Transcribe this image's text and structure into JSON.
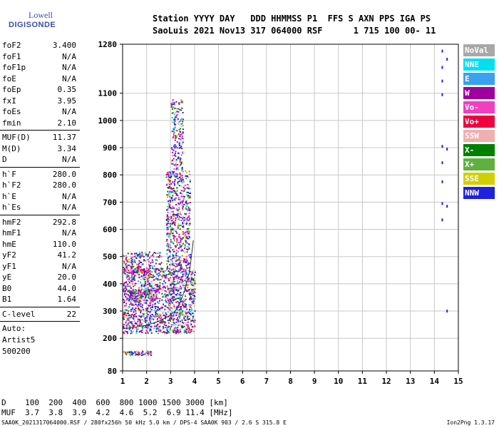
{
  "logo": {
    "top": "Lowell",
    "main": "DIGISONDE"
  },
  "header": {
    "line1": "Station YYYY DAY   DDD HHMMSS P1  FFS S AXN PPS IGA PS",
    "line2": "SaoLuis 2021 Nov13 317 064000 RSF      1 715 100 00- 11"
  },
  "params": [
    {
      "name": "foF2",
      "value": "3.400"
    },
    {
      "name": "foF1",
      "value": "N/A"
    },
    {
      "name": "foF1p",
      "value": "N/A"
    },
    {
      "name": "foE",
      "value": "N/A"
    },
    {
      "name": "foEp",
      "value": "0.35"
    },
    {
      "name": "fxI",
      "value": "3.95"
    },
    {
      "name": "foEs",
      "value": "N/A"
    },
    {
      "name": "fmin",
      "value": "2.10",
      "sep_after": true
    },
    {
      "name": "MUF(D)",
      "value": "11.37"
    },
    {
      "name": "M(D)",
      "value": "3.34"
    },
    {
      "name": "D",
      "value": "N/A",
      "sep_after": true
    },
    {
      "name": "h`F",
      "value": "280.0"
    },
    {
      "name": "h`F2",
      "value": "280.0"
    },
    {
      "name": "h`E",
      "value": "N/A"
    },
    {
      "name": "h`Es",
      "value": "N/A",
      "sep_after": true
    },
    {
      "name": "hmF2",
      "value": "292.8"
    },
    {
      "name": "hmF1",
      "value": "N/A"
    },
    {
      "name": "hmE",
      "value": "110.0"
    },
    {
      "name": "yF2",
      "value": "41.2"
    },
    {
      "name": "yF1",
      "value": "N/A"
    },
    {
      "name": "yE",
      "value": "20.0"
    },
    {
      "name": "B0",
      "value": "44.0"
    },
    {
      "name": "B1",
      "value": "1.64",
      "sep_after": true
    },
    {
      "name": "C-level",
      "value": "22",
      "sep_after": true
    }
  ],
  "auto": {
    "line1": "Auto:",
    "line2": "Artist5",
    "line3": "500200"
  },
  "legend": [
    {
      "label": "NoVal",
      "color": "#a8a8a8"
    },
    {
      "label": "NNE",
      "color": "#00e0f0"
    },
    {
      "label": "E",
      "color": "#3aa0f0"
    },
    {
      "label": "W",
      "color": "#a000a0"
    },
    {
      "label": "Vo-",
      "color": "#f040c0"
    },
    {
      "label": "Vo+",
      "color": "#f00040"
    },
    {
      "label": "SSW",
      "color": "#f0b0b0"
    },
    {
      "label": "X-",
      "color": "#008000"
    },
    {
      "label": "X+",
      "color": "#60b040"
    },
    {
      "label": "SSE",
      "color": "#d0d000"
    },
    {
      "label": "NNW",
      "color": "#2020e0"
    }
  ],
  "muf_table": {
    "line1": "D    100  200  400  600  800 1000 1500 3000 [km]",
    "line2": "MUF  3.7  3.8  3.9  4.2  4.6  5.2  6.9 11.4 [MHz]"
  },
  "footer": {
    "left": "SAA0K_2021317064000.RSF / 280fx256h 50 kHz 5.0 km / DPS-4 SAA0K 903 / 2.6 S 315.8 E",
    "right": "Ion2Png 1.3.17"
  },
  "chart_data": {
    "type": "scatter",
    "xlim": [
      1,
      15
    ],
    "ylim": [
      80,
      1280
    ],
    "x_ticks": [
      1,
      2,
      3,
      4,
      5,
      6,
      7,
      8,
      9,
      10,
      11,
      12,
      13,
      14,
      15
    ],
    "y_ticks": [
      80,
      200,
      300,
      400,
      500,
      600,
      700,
      800,
      900,
      1000,
      1100,
      1280
    ],
    "grid": true,
    "trace_F2": [
      {
        "x": 1.0,
        "y": 235
      },
      {
        "x": 1.5,
        "y": 240
      },
      {
        "x": 2.0,
        "y": 248
      },
      {
        "x": 2.5,
        "y": 262
      },
      {
        "x": 2.9,
        "y": 280
      },
      {
        "x": 3.2,
        "y": 300
      },
      {
        "x": 3.4,
        "y": 330
      },
      {
        "x": 3.6,
        "y": 380
      },
      {
        "x": 3.8,
        "y": 450
      },
      {
        "x": 3.95,
        "y": 560
      }
    ],
    "echo_regions": [
      {
        "x": [
          1.0,
          4.0
        ],
        "y": [
          220,
          460
        ],
        "density": 1400
      },
      {
        "x": [
          2.8,
          3.8
        ],
        "y": [
          460,
          820
        ],
        "density": 600
      },
      {
        "x": [
          3.0,
          3.5
        ],
        "y": [
          820,
          1080
        ],
        "density": 180
      },
      {
        "x": [
          1.0,
          2.6
        ],
        "y": [
          440,
          520
        ],
        "density": 200
      },
      {
        "x": [
          1.2,
          2.4
        ],
        "y": [
          340,
          380
        ],
        "density": 120
      },
      {
        "x": [
          1.0,
          2.2
        ],
        "y": [
          140,
          155
        ],
        "density": 60
      }
    ],
    "side_points": [
      {
        "x": 14.3,
        "y": 1260
      },
      {
        "x": 14.3,
        "y": 1200
      },
      {
        "x": 14.3,
        "y": 1150
      },
      {
        "x": 14.3,
        "y": 1100
      },
      {
        "x": 14.3,
        "y": 910
      },
      {
        "x": 14.3,
        "y": 850
      },
      {
        "x": 14.3,
        "y": 780
      },
      {
        "x": 14.3,
        "y": 700
      },
      {
        "x": 14.3,
        "y": 640
      },
      {
        "x": 14.5,
        "y": 900
      },
      {
        "x": 14.5,
        "y": 690
      },
      {
        "x": 14.5,
        "y": 305
      },
      {
        "x": 14.5,
        "y": 1230
      }
    ]
  }
}
